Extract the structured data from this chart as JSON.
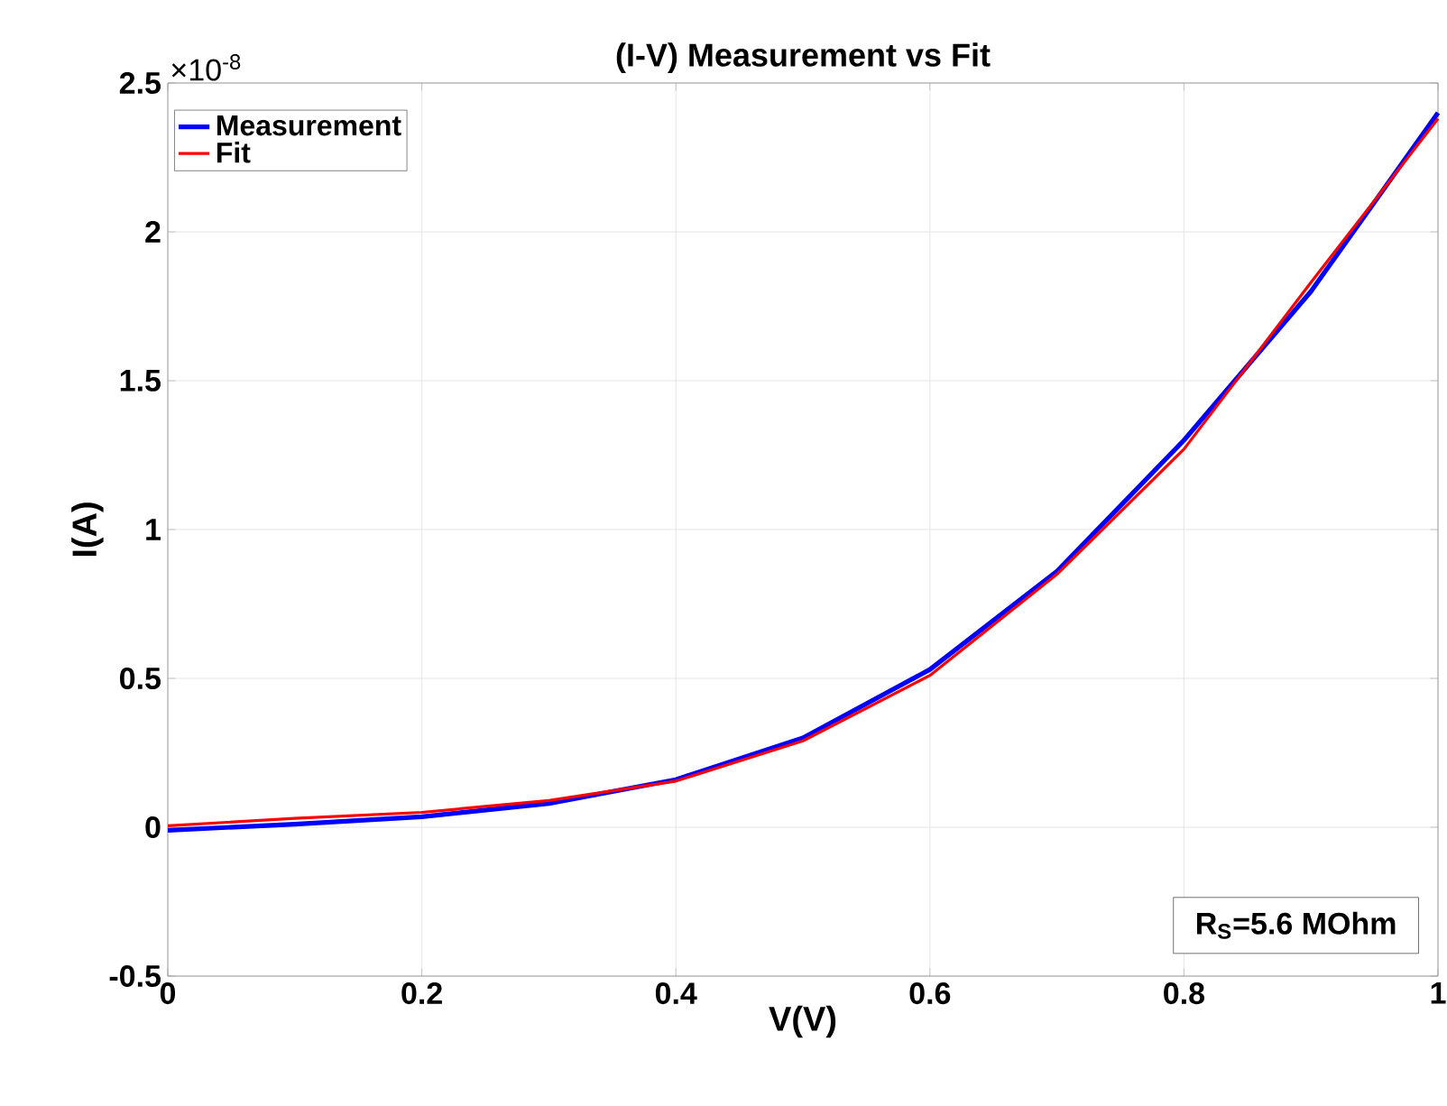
{
  "chart_data": {
    "type": "line",
    "title": "(I-V) Measurement vs Fit",
    "xlabel": "V(V)",
    "ylabel": "I(A)",
    "x": [
      0,
      0.1,
      0.2,
      0.3,
      0.4,
      0.5,
      0.6,
      0.7,
      0.8,
      0.9,
      1.0
    ],
    "series": [
      {
        "name": "Measurement",
        "color": "#0000ff",
        "values": [
          -0.01,
          0.01,
          0.035,
          0.08,
          0.16,
          0.3,
          0.53,
          0.86,
          1.3,
          1.8,
          2.4
        ]
      },
      {
        "name": "Fit",
        "color": "#ff0000",
        "values": [
          0.005,
          0.03,
          0.05,
          0.09,
          0.155,
          0.29,
          0.51,
          0.85,
          1.27,
          1.83,
          2.38
        ]
      }
    ],
    "xlim": [
      0,
      1
    ],
    "ylim": [
      -0.5,
      2.5
    ],
    "xticks": [
      0,
      0.2,
      0.4,
      0.6,
      0.8,
      1
    ],
    "yticks": [
      -0.5,
      0,
      0.5,
      1,
      1.5,
      2,
      2.5
    ],
    "grid": true,
    "legend": "top left",
    "line_style": "solid",
    "marker": "none",
    "annotations": [
      "×10$^{-8}$",
      "R$_{S}$=5.6 MOhm"
    ]
  }
}
